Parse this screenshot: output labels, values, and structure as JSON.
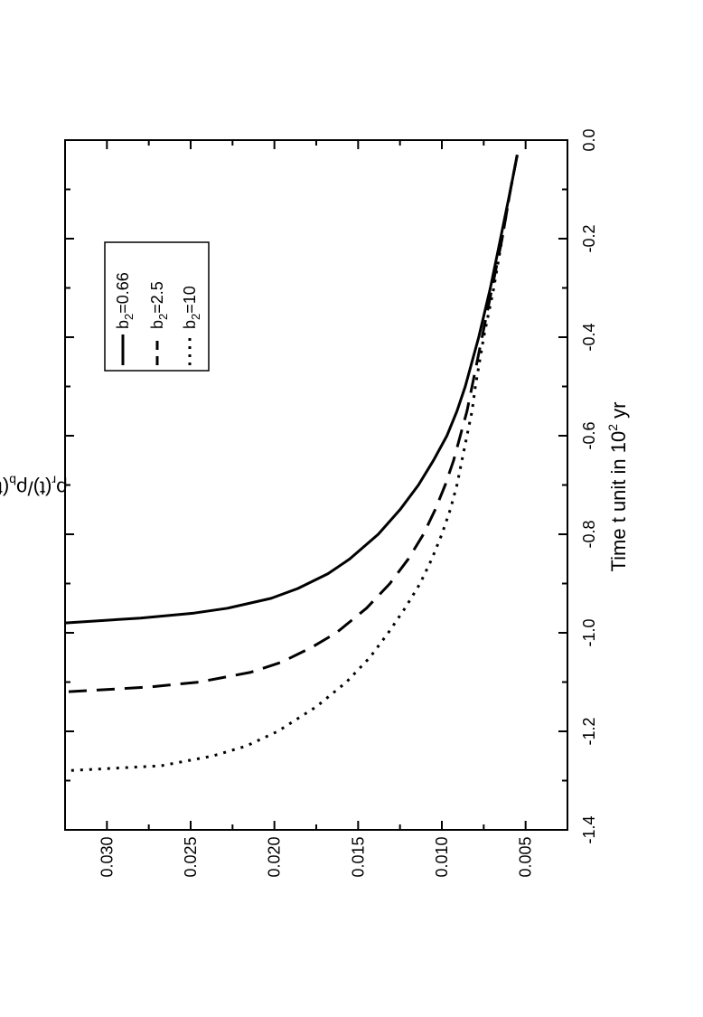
{
  "chart_data": {
    "type": "line",
    "rotation": "rotated 90 degrees clockwise (landscape figure shown in portrait)",
    "title": "",
    "xlabel": {
      "main": "Time t   unit in 10",
      "sup": "2",
      "unit": " yr"
    },
    "ylabel": {
      "rho": "ρ",
      "sub_r": "r",
      "mid": "(t)/ρ",
      "sub_b": "b",
      "end": "(t)"
    },
    "xlim": [
      -1.4,
      0.0
    ],
    "ylim": [
      0.0025,
      0.0325
    ],
    "xticks": [
      -1.4,
      -1.2,
      -1.0,
      -0.8,
      -0.6,
      -0.4,
      -0.2,
      0.0
    ],
    "xtick_labels": [
      "-1.4",
      "-1.2",
      "-1.0",
      "-0.8",
      "-0.6",
      "-0.4",
      "-0.2",
      "0.0"
    ],
    "yticks": [
      0.005,
      0.01,
      0.015,
      0.02,
      0.025,
      0.03
    ],
    "ytick_labels": [
      "0.005",
      "0.010",
      "0.015",
      "0.020",
      "0.025",
      "0.030"
    ],
    "grid": false,
    "legend_position": "top-left",
    "series": [
      {
        "name": "b2=0.66",
        "label_prefix": "b",
        "label_sub": "2",
        "label_suffix": "=0.66",
        "style": "solid",
        "x": [
          -0.03,
          -0.1,
          -0.2,
          -0.3,
          -0.4,
          -0.5,
          -0.55,
          -0.6,
          -0.65,
          -0.7,
          -0.75,
          -0.8,
          -0.85,
          -0.88,
          -0.91,
          -0.93,
          -0.95,
          -0.96,
          -0.97,
          -0.98
        ],
        "y": [
          0.0055,
          0.0059,
          0.0065,
          0.0071,
          0.0078,
          0.0086,
          0.0091,
          0.0097,
          0.0105,
          0.0114,
          0.0125,
          0.0138,
          0.0155,
          0.0168,
          0.0186,
          0.0202,
          0.0228,
          0.0248,
          0.028,
          0.0325
        ]
      },
      {
        "name": "b2=2.5",
        "label_prefix": "b",
        "label_sub": "2",
        "label_suffix": "=2.5",
        "style": "dashed",
        "x": [
          -0.03,
          -0.1,
          -0.2,
          -0.3,
          -0.4,
          -0.5,
          -0.55,
          -0.6,
          -0.65,
          -0.7,
          -0.75,
          -0.8,
          -0.85,
          -0.9,
          -0.95,
          -1.0,
          -1.03,
          -1.06,
          -1.08,
          -1.1,
          -1.11,
          -1.12
        ],
        "y": [
          0.0055,
          0.0059,
          0.0064,
          0.007,
          0.0076,
          0.0082,
          0.0085,
          0.0089,
          0.0093,
          0.0098,
          0.0104,
          0.0111,
          0.012,
          0.0131,
          0.0145,
          0.0163,
          0.0178,
          0.0196,
          0.0214,
          0.0245,
          0.0275,
          0.0325
        ]
      },
      {
        "name": "b2=10",
        "label_prefix": "b",
        "label_sub": "2",
        "label_suffix": "=10",
        "style": "dotted",
        "x": [
          -0.03,
          -0.1,
          -0.2,
          -0.3,
          -0.4,
          -0.5,
          -0.55,
          -0.6,
          -0.65,
          -0.7,
          -0.75,
          -0.8,
          -0.85,
          -0.9,
          -0.95,
          -1.0,
          -1.05,
          -1.1,
          -1.15,
          -1.2,
          -1.23,
          -1.25,
          -1.27,
          -1.28
        ],
        "y": [
          0.0055,
          0.0059,
          0.0064,
          0.0069,
          0.0075,
          0.008,
          0.0082,
          0.0085,
          0.0088,
          0.0091,
          0.0095,
          0.01,
          0.0106,
          0.0113,
          0.0122,
          0.0132,
          0.0143,
          0.0157,
          0.0175,
          0.0198,
          0.0217,
          0.0237,
          0.0268,
          0.0325
        ]
      }
    ]
  }
}
